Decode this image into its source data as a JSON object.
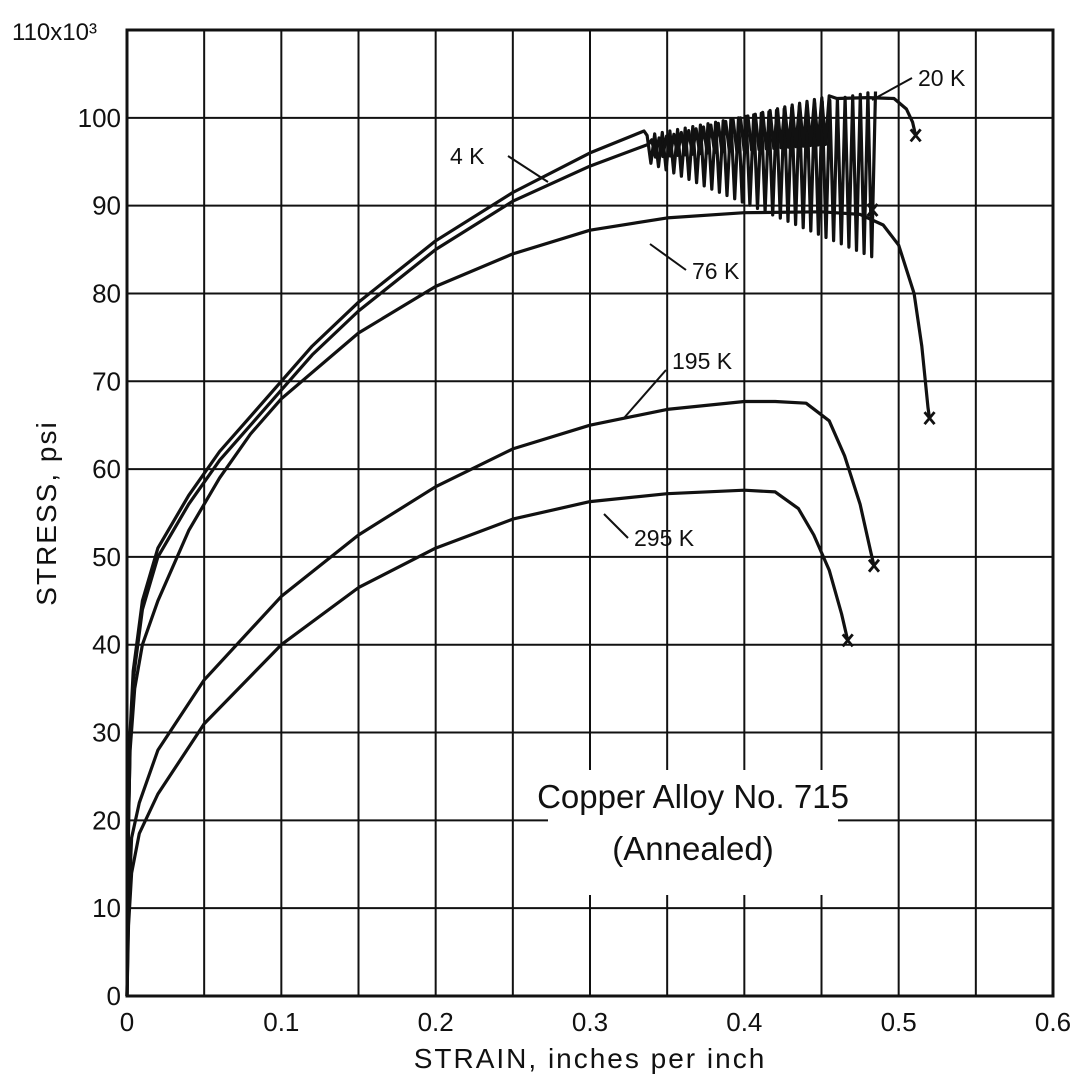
{
  "chart_data": {
    "type": "line",
    "title": "",
    "annotation": [
      "Copper Alloy No. 715",
      "(Annealed)"
    ],
    "xlabel": "STRAIN, inches per inch",
    "ylabel": "STRESS, psi",
    "y_max_label": "110x10³",
    "xlim": [
      0,
      0.6
    ],
    "ylim": [
      0,
      110000
    ],
    "x_ticks": [
      0,
      0.1,
      0.2,
      0.3,
      0.4,
      0.5,
      0.6
    ],
    "x_tick_labels": [
      "0",
      "0.1",
      "0.2",
      "0.3",
      "0.4",
      "0.5",
      "0.6"
    ],
    "y_ticks": [
      0,
      10000,
      20000,
      30000,
      40000,
      50000,
      60000,
      70000,
      80000,
      90000,
      100000
    ],
    "y_tick_labels": [
      "0",
      "10",
      "20",
      "30",
      "40",
      "50",
      "60",
      "70",
      "80",
      "90",
      "100"
    ],
    "grid": true,
    "series": [
      {
        "name": "4 K",
        "points": [
          [
            0,
            0
          ],
          [
            0.001,
            20000
          ],
          [
            0.002,
            30000
          ],
          [
            0.004,
            37000
          ],
          [
            0.01,
            45000
          ],
          [
            0.02,
            51000
          ],
          [
            0.04,
            57000
          ],
          [
            0.06,
            62000
          ],
          [
            0.08,
            66000
          ],
          [
            0.1,
            70000
          ],
          [
            0.12,
            74000
          ],
          [
            0.15,
            79000
          ],
          [
            0.2,
            86000
          ],
          [
            0.25,
            91500
          ],
          [
            0.3,
            96000
          ],
          [
            0.335,
            98500
          ]
        ],
        "serrated": {
          "x": [
            0.337,
            0.485
          ],
          "y_upper": [
            98000,
            103000
          ],
          "y_lower": [
            95000,
            84000
          ],
          "cycles": 30
        },
        "fracture": [
          0.483,
          89500
        ]
      },
      {
        "name": "20 K",
        "points": [
          [
            0,
            0
          ],
          [
            0.001,
            19000
          ],
          [
            0.002,
            29000
          ],
          [
            0.004,
            36000
          ],
          [
            0.01,
            44000
          ],
          [
            0.02,
            50000
          ],
          [
            0.04,
            56000
          ],
          [
            0.06,
            61000
          ],
          [
            0.08,
            65000
          ],
          [
            0.1,
            69000
          ],
          [
            0.12,
            73000
          ],
          [
            0.15,
            78000
          ],
          [
            0.2,
            85000
          ],
          [
            0.25,
            90500
          ],
          [
            0.3,
            94500
          ],
          [
            0.338,
            97000
          ]
        ],
        "serrated": {
          "x": [
            0.34,
            0.455
          ],
          "y_upper": [
            97500,
            102500
          ],
          "y_lower": [
            95500,
            97000
          ],
          "cycles": 24
        },
        "tail": [
          [
            0.46,
            102200
          ],
          [
            0.48,
            102300
          ],
          [
            0.497,
            102200
          ],
          [
            0.505,
            101000
          ],
          [
            0.509,
            99500
          ],
          [
            0.511,
            98000
          ]
        ],
        "fracture": [
          0.511,
          98000
        ]
      },
      {
        "name": "76 K",
        "points": [
          [
            0,
            0
          ],
          [
            0.001,
            20000
          ],
          [
            0.002,
            28000
          ],
          [
            0.005,
            35000
          ],
          [
            0.01,
            40000
          ],
          [
            0.02,
            45000
          ],
          [
            0.04,
            53000
          ],
          [
            0.06,
            59000
          ],
          [
            0.08,
            64000
          ],
          [
            0.1,
            68000
          ],
          [
            0.15,
            75500
          ],
          [
            0.2,
            80800
          ],
          [
            0.25,
            84500
          ],
          [
            0.3,
            87200
          ],
          [
            0.35,
            88600
          ],
          [
            0.4,
            89200
          ],
          [
            0.45,
            89300
          ],
          [
            0.475,
            89000
          ],
          [
            0.49,
            87800
          ],
          [
            0.5,
            85500
          ],
          [
            0.51,
            80000
          ],
          [
            0.515,
            74000
          ],
          [
            0.519,
            67000
          ],
          [
            0.52,
            65800
          ]
        ],
        "fracture": [
          0.52,
          65800
        ]
      },
      {
        "name": "195 K",
        "points": [
          [
            0,
            0
          ],
          [
            0.001,
            10000
          ],
          [
            0.003,
            18000
          ],
          [
            0.008,
            22000
          ],
          [
            0.02,
            28000
          ],
          [
            0.05,
            36000
          ],
          [
            0.1,
            45500
          ],
          [
            0.15,
            52500
          ],
          [
            0.2,
            58000
          ],
          [
            0.25,
            62300
          ],
          [
            0.3,
            65000
          ],
          [
            0.35,
            66800
          ],
          [
            0.4,
            67700
          ],
          [
            0.42,
            67700
          ],
          [
            0.44,
            67500
          ],
          [
            0.455,
            65500
          ],
          [
            0.465,
            61500
          ],
          [
            0.475,
            56000
          ],
          [
            0.482,
            50500
          ],
          [
            0.484,
            49000
          ]
        ],
        "fracture": [
          0.484,
          49000
        ]
      },
      {
        "name": "295 K",
        "points": [
          [
            0,
            0
          ],
          [
            0.001,
            8000
          ],
          [
            0.003,
            14000
          ],
          [
            0.008,
            18500
          ],
          [
            0.02,
            23000
          ],
          [
            0.05,
            31000
          ],
          [
            0.1,
            40000
          ],
          [
            0.15,
            46500
          ],
          [
            0.2,
            51000
          ],
          [
            0.25,
            54300
          ],
          [
            0.3,
            56300
          ],
          [
            0.35,
            57200
          ],
          [
            0.4,
            57600
          ],
          [
            0.42,
            57400
          ],
          [
            0.435,
            55500
          ],
          [
            0.445,
            52500
          ],
          [
            0.455,
            48500
          ],
          [
            0.463,
            43500
          ],
          [
            0.467,
            40500
          ]
        ],
        "fracture": [
          0.467,
          40500
        ]
      }
    ]
  }
}
